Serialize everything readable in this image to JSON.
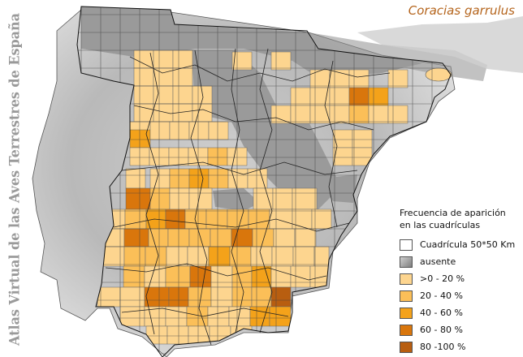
{
  "atlas_title": "Atlas Virtual de las Aves Terrestres de España",
  "species": "Coracias garrulus",
  "legend": {
    "title_line1": "Frecuencia de aparición",
    "title_line2": "en las cuadrículas",
    "items": [
      {
        "label": "Cuadrícula 50*50 Km",
        "color": "#ffffff"
      },
      {
        "label": "ausente",
        "color": "#9a9a9a"
      },
      {
        "label": ">0 - 20 %",
        "color": "#fdd58f"
      },
      {
        "label": "20 - 40 %",
        "color": "#fbbf58"
      },
      {
        "label": "40 - 60 %",
        "color": "#f4a21a"
      },
      {
        "label": "60 - 80 %",
        "color": "#d9760c"
      },
      {
        "label": "80 -100 %",
        "color": "#b85e10"
      }
    ]
  },
  "colors": {
    "title": "#9a9a9a",
    "species": "#b5651d",
    "relief_light": "#e8e8e8",
    "relief_dark": "#8a8a8a"
  }
}
